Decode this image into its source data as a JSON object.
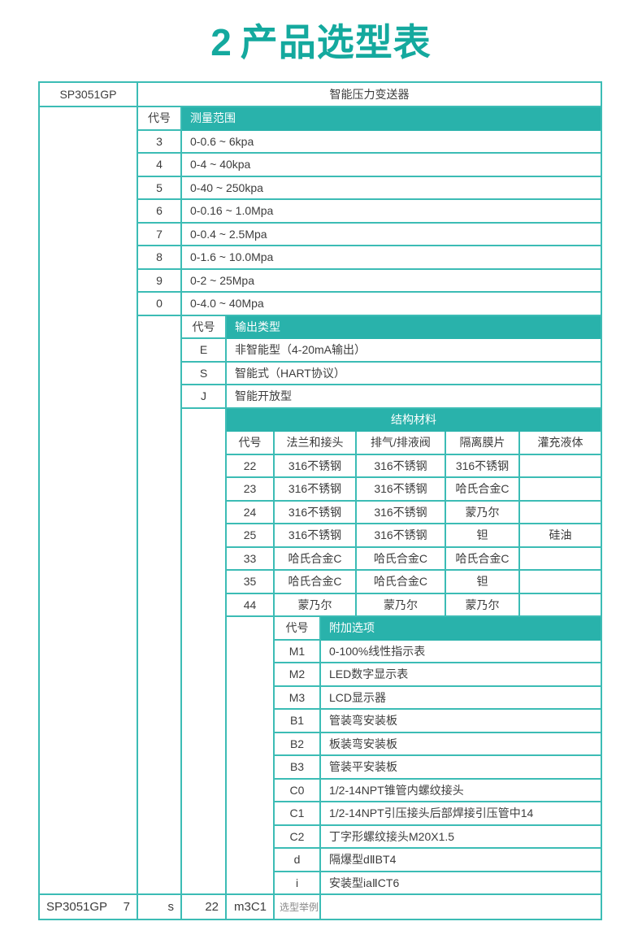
{
  "header": {
    "number": "2",
    "text": "产品选型表"
  },
  "colors": {
    "accent": "#14a99e",
    "table_border": "#3cbcb5",
    "header_fill": "#29b2ab",
    "text": "#3d3d3d",
    "muted": "#888888"
  },
  "table": {
    "product_row": {
      "model": "SP3051GP",
      "name": "智能压力变送器"
    },
    "code_label": "代号",
    "range_section": {
      "header": "测量范围",
      "rows": [
        {
          "code": "3",
          "desc": "0-0.6 ~ 6kpa"
        },
        {
          "code": "4",
          "desc": "0-4 ~ 40kpa"
        },
        {
          "code": "5",
          "desc": "0-40 ~ 250kpa"
        },
        {
          "code": "6",
          "desc": "0-0.16 ~ 1.0Mpa"
        },
        {
          "code": "7",
          "desc": "0-0.4 ~ 2.5Mpa"
        },
        {
          "code": "8",
          "desc": "0-1.6 ~ 10.0Mpa"
        },
        {
          "code": "9",
          "desc": "0-2 ~ 25Mpa"
        },
        {
          "code": "0",
          "desc": "0-4.0 ~ 40Mpa"
        }
      ]
    },
    "output_section": {
      "header": "输出类型",
      "rows": [
        {
          "code": "E",
          "desc": "非智能型（4-20mA输出）"
        },
        {
          "code": "S",
          "desc": "智能式（HART协议）"
        },
        {
          "code": "J",
          "desc": "智能开放型"
        }
      ]
    },
    "material_section": {
      "header": "结构材料",
      "columns": [
        "代号",
        "法兰和接头",
        "排气/排液阀",
        "隔离膜片",
        "灌充液体"
      ],
      "rows": [
        {
          "code": "22",
          "flange": "316不锈钢",
          "valve": "316不锈钢",
          "diaphragm": "316不锈钢",
          "fill": ""
        },
        {
          "code": "23",
          "flange": "316不锈钢",
          "valve": "316不锈钢",
          "diaphragm": "哈氏合金C",
          "fill": ""
        },
        {
          "code": "24",
          "flange": "316不锈钢",
          "valve": "316不锈钢",
          "diaphragm": "蒙乃尔",
          "fill": ""
        },
        {
          "code": "25",
          "flange": "316不锈钢",
          "valve": "316不锈钢",
          "diaphragm": "钽",
          "fill": "硅油"
        },
        {
          "code": "33",
          "flange": "哈氏合金C",
          "valve": "哈氏合金C",
          "diaphragm": "哈氏合金C",
          "fill": ""
        },
        {
          "code": "35",
          "flange": "哈氏合金C",
          "valve": "哈氏合金C",
          "diaphragm": "钽",
          "fill": ""
        },
        {
          "code": "44",
          "flange": "蒙乃尔",
          "valve": "蒙乃尔",
          "diaphragm": "蒙乃尔",
          "fill": ""
        }
      ]
    },
    "options_section": {
      "header": "附加选项",
      "rows": [
        {
          "code": "M1",
          "desc": "0-100%线性指示表"
        },
        {
          "code": "M2",
          "desc": "LED数字显示表"
        },
        {
          "code": "M3",
          "desc": "LCD显示器"
        },
        {
          "code": "B1",
          "desc": "管装弯安装板"
        },
        {
          "code": "B2",
          "desc": "板装弯安装板"
        },
        {
          "code": "B3",
          "desc": "管装平安装板"
        },
        {
          "code": "C0",
          "desc": "1/2-14NPT锥管内螺纹接头"
        },
        {
          "code": "C1",
          "desc": "1/2-14NPT引压接头后部焊接引压管中14"
        },
        {
          "code": "C2",
          "desc": "丁字形螺纹接头M20X1.5"
        },
        {
          "code": "d",
          "desc": "隔爆型dⅡBT4"
        },
        {
          "code": "i",
          "desc": "安装型iaⅡCT6"
        }
      ]
    },
    "example_row": {
      "model": "SP3051GP",
      "range_code": "7",
      "output_code": "s",
      "material_code": "22",
      "options_code": "m3C1",
      "label": "选型举例"
    }
  }
}
